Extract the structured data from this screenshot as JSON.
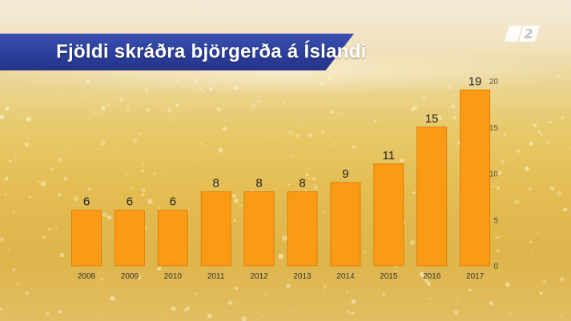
{
  "title": "Fjöldi skráðra björgerða á Íslandi",
  "logo": "channel-2-logo",
  "colors": {
    "bar": "#fb9a14",
    "bar_edge": "#e07f08",
    "title_bar": "#2d3f9c",
    "value_label": "#222222",
    "tick_label": "#333333"
  },
  "chart_data": {
    "type": "bar",
    "categories": [
      "2008",
      "2009",
      "2010",
      "2011",
      "2012",
      "2013",
      "2014",
      "2015",
      "2016",
      "2017"
    ],
    "values": [
      6,
      6,
      6,
      8,
      8,
      8,
      9,
      11,
      15,
      19
    ],
    "y_ticks": [
      "0",
      "5",
      "10",
      "15",
      "20"
    ],
    "ylim": [
      0,
      20
    ],
    "grid": false,
    "legend": "none"
  }
}
